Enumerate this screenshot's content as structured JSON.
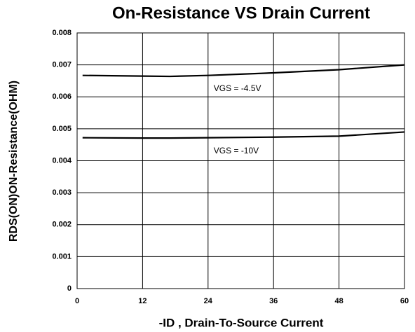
{
  "chart_data": {
    "type": "line",
    "title": "On-Resistance VS Drain Current",
    "xlabel": "-ID , Drain-To-Source Current",
    "ylabel": "RDS(ON)ON-Resistance(OHM)",
    "x": [
      1,
      12,
      17,
      24,
      36,
      48,
      60
    ],
    "series": [
      {
        "name": "VGS = -4.5V",
        "color": "#000000",
        "values": [
          0.00667,
          0.00665,
          0.00664,
          0.00667,
          0.00675,
          0.00685,
          0.007
        ]
      },
      {
        "name": "VGS = -10V",
        "color": "#000000",
        "values": [
          0.00472,
          0.00471,
          0.00471,
          0.00472,
          0.00474,
          0.00477,
          0.0049
        ]
      }
    ],
    "xlim": [
      0,
      60
    ],
    "xticks": [
      0,
      12,
      24,
      36,
      48,
      60
    ],
    "ylim": [
      0,
      0.008
    ],
    "yticks": [
      0,
      0.001,
      0.002,
      0.003,
      0.004,
      0.005,
      0.006,
      0.007,
      0.008
    ],
    "grid": true
  }
}
